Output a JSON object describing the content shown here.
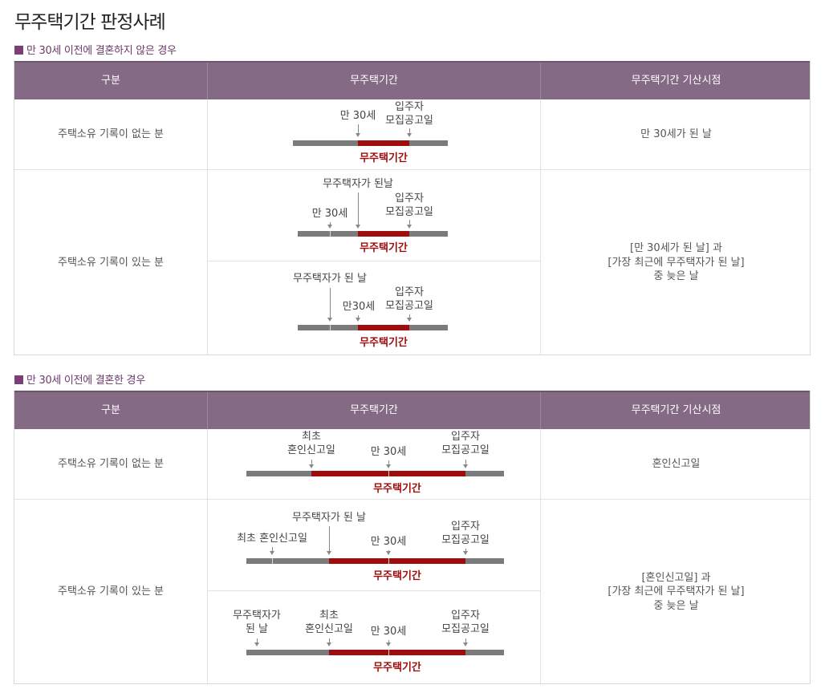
{
  "page_title": "무주택기간 판정사례",
  "sections": [
    {
      "title": "만 30세 이전에 결혼하지 않은 경우",
      "headers": [
        "구분",
        "무주택기간",
        "무주택기간 기산시점"
      ],
      "rows": [
        {
          "category": "주택소유 기록이 없는 분",
          "start_point": "만 30세가 된 날"
        },
        {
          "category": "주택소유 기록이 있는 분",
          "start_point": "[만 30세가 된 날] 과\n[가장 최근에 무주택자가 된 날]\n중 늦은 날"
        }
      ],
      "diagrams": [
        {
          "labels": [
            "만 30세",
            "입주자\n모집공고일"
          ],
          "period": "무주택기간"
        },
        {
          "labels": [
            "무주택자가 된날",
            "만 30세",
            "입주자\n모집공고일"
          ],
          "period": "무주택기간"
        },
        {
          "labels": [
            "무주택자가 된 날",
            "만30세",
            "입주자\n모집공고일"
          ],
          "period": "무주택기간"
        }
      ]
    },
    {
      "title": "만 30세 이전에 결혼한 경우",
      "headers": [
        "구분",
        "무주택기간",
        "무주택기간 기산시점"
      ],
      "rows": [
        {
          "category": "주택소유 기록이 없는 분",
          "start_point": "혼인신고일"
        },
        {
          "category": "주택소유 기록이 있는 분",
          "start_point": "[혼인신고일] 과\n[가장 최근에 무주택자가 된 날]\n중 늦은 날"
        }
      ],
      "diagrams": [
        {
          "labels": [
            "최초\n혼인신고일",
            "만 30세",
            "입주자\n모집공고일"
          ],
          "period": "무주택기간"
        },
        {
          "labels": [
            "최초 혼인신고일",
            "무주택자가 된 날",
            "만 30세",
            "입주자\n모집공고일"
          ],
          "period": "무주택기간"
        },
        {
          "labels": [
            "무주택자가\n된 날",
            "최초\n혼인신고일",
            "만 30세",
            "입주자\n모집공고일"
          ],
          "period": "무주택기간"
        }
      ]
    }
  ]
}
